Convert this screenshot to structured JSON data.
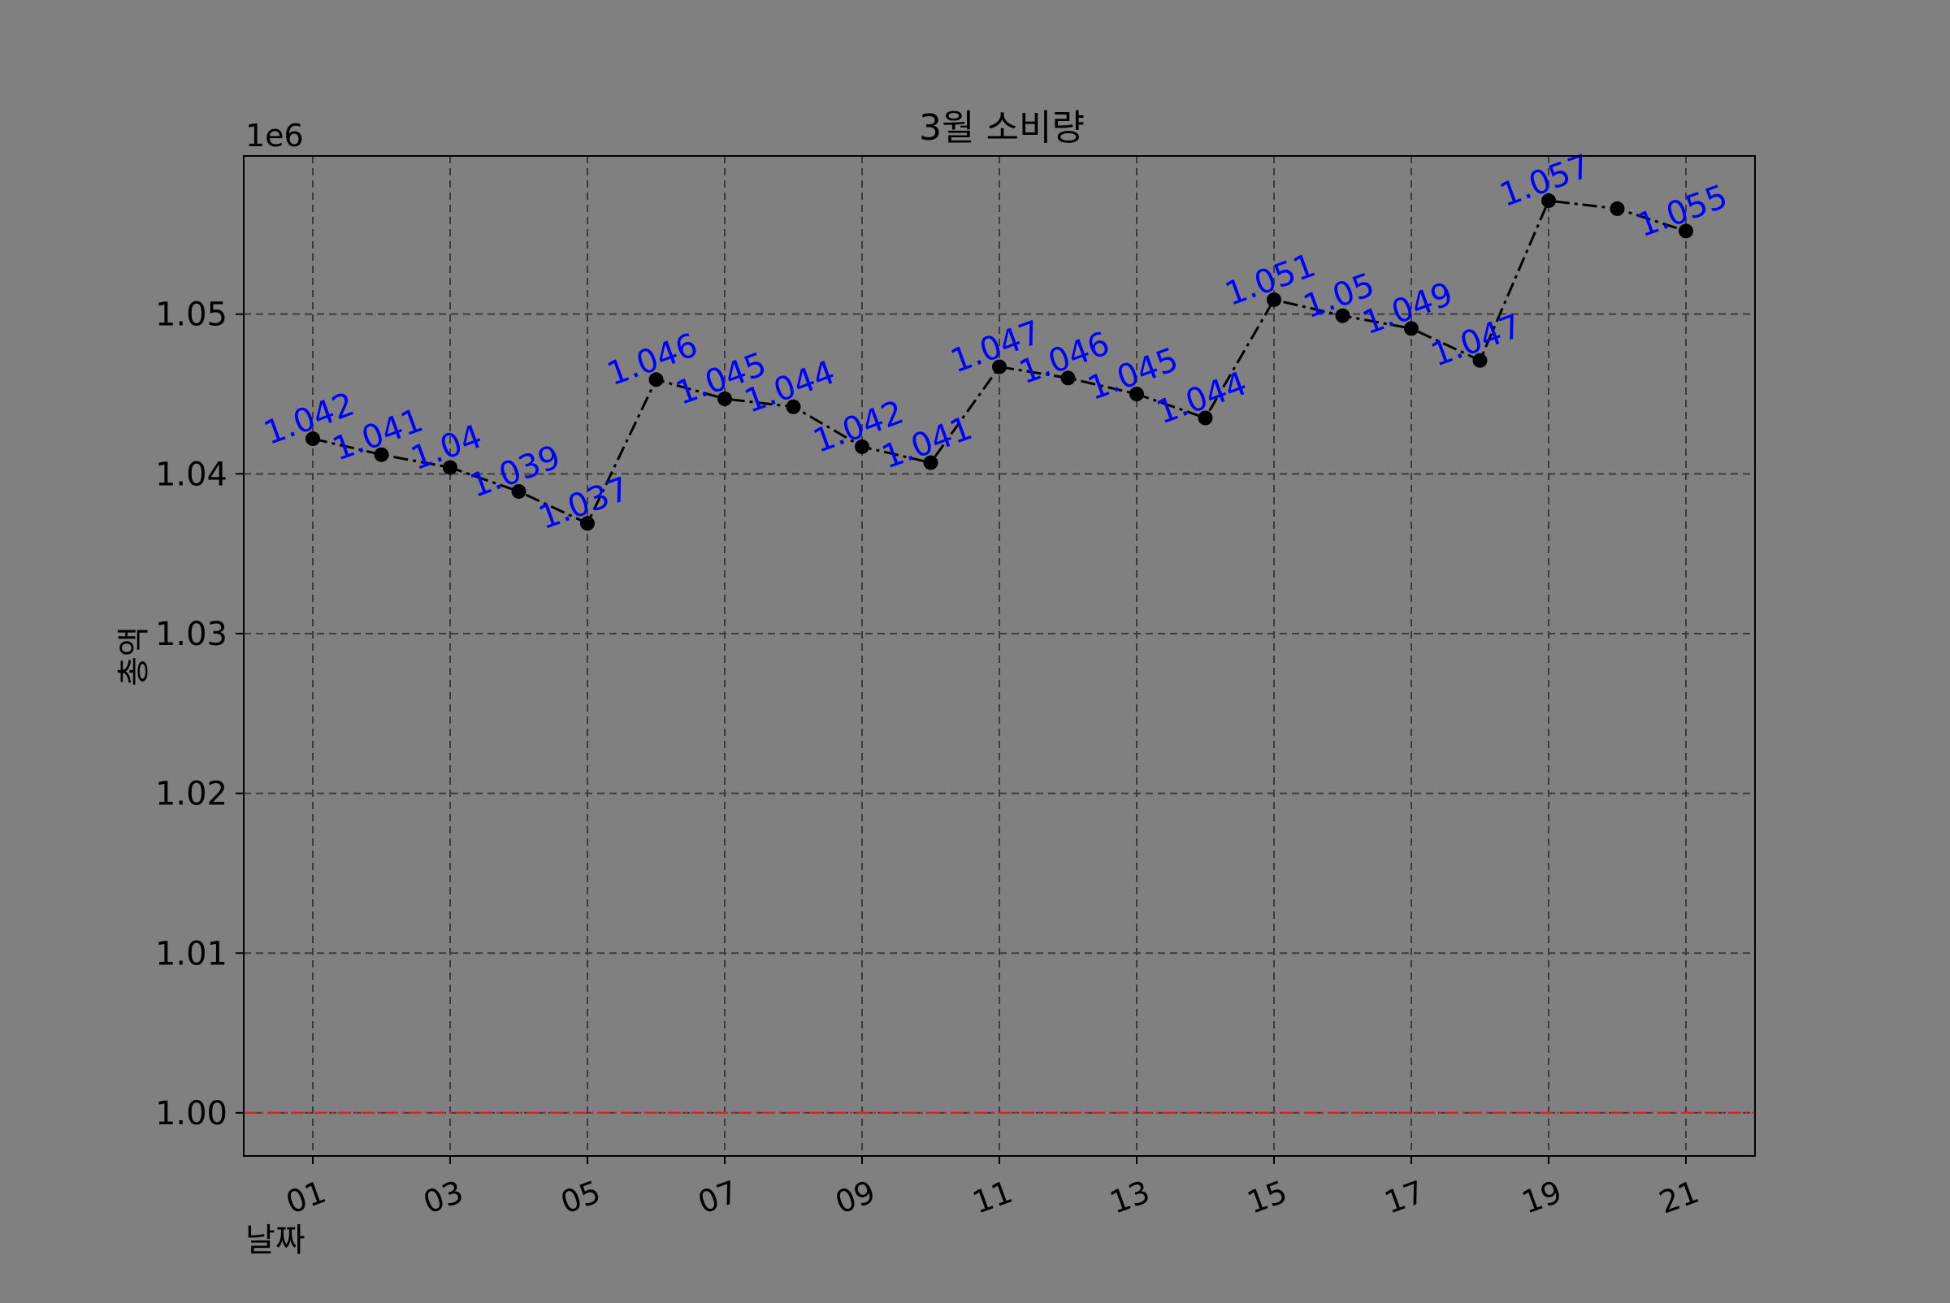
{
  "chart_data": {
    "type": "line",
    "title": "3월 소비량",
    "xlabel": "날짜",
    "ylabel": "총액",
    "y_offset_label": "1e6",
    "y_scale_factor": 1000000,
    "x_categories": [
      "01",
      "02",
      "03",
      "04",
      "05",
      "06",
      "07",
      "08",
      "09",
      "10",
      "11",
      "12",
      "13",
      "14",
      "15",
      "16",
      "17",
      "18",
      "19",
      "20",
      "21"
    ],
    "x_tick_labels": [
      "01",
      "03",
      "05",
      "07",
      "09",
      "11",
      "13",
      "15",
      "17",
      "19",
      "21"
    ],
    "series": [
      {
        "values": [
          1042200,
          1041200,
          1040400,
          1038900,
          1036900,
          1045900,
          1044700,
          1044200,
          1041700,
          1040700,
          1046700,
          1046000,
          1045000,
          1043500,
          1050900,
          1049900,
          1049100,
          1047100,
          1057100,
          1056600,
          1055200
        ],
        "data_labels": [
          "1.042",
          "1.041",
          "1.04",
          "1.039",
          "1.037",
          "1.046",
          "1.045",
          "1.044",
          "1.042",
          "1.041",
          "1.047",
          "1.046",
          "1.045",
          "1.044",
          "1.051",
          "1.05",
          "1.049",
          "1.047",
          "1.057",
          "",
          "1.055"
        ],
        "line_color": "#000000",
        "line_style": "dash-dot",
        "marker": "circle",
        "label_color": "#0000ff"
      }
    ],
    "reference_line": {
      "value": 1000000,
      "color": "#d62728",
      "style": "dash-dot"
    },
    "ylim": [
      997300,
      1059900
    ],
    "y_ticks": [
      1000000,
      1010000,
      1020000,
      1030000,
      1040000,
      1050000
    ],
    "y_tick_labels": [
      "1.00",
      "1.01",
      "1.02",
      "1.03",
      "1.04",
      "1.05"
    ],
    "grid": true,
    "background_color": "#808080"
  }
}
